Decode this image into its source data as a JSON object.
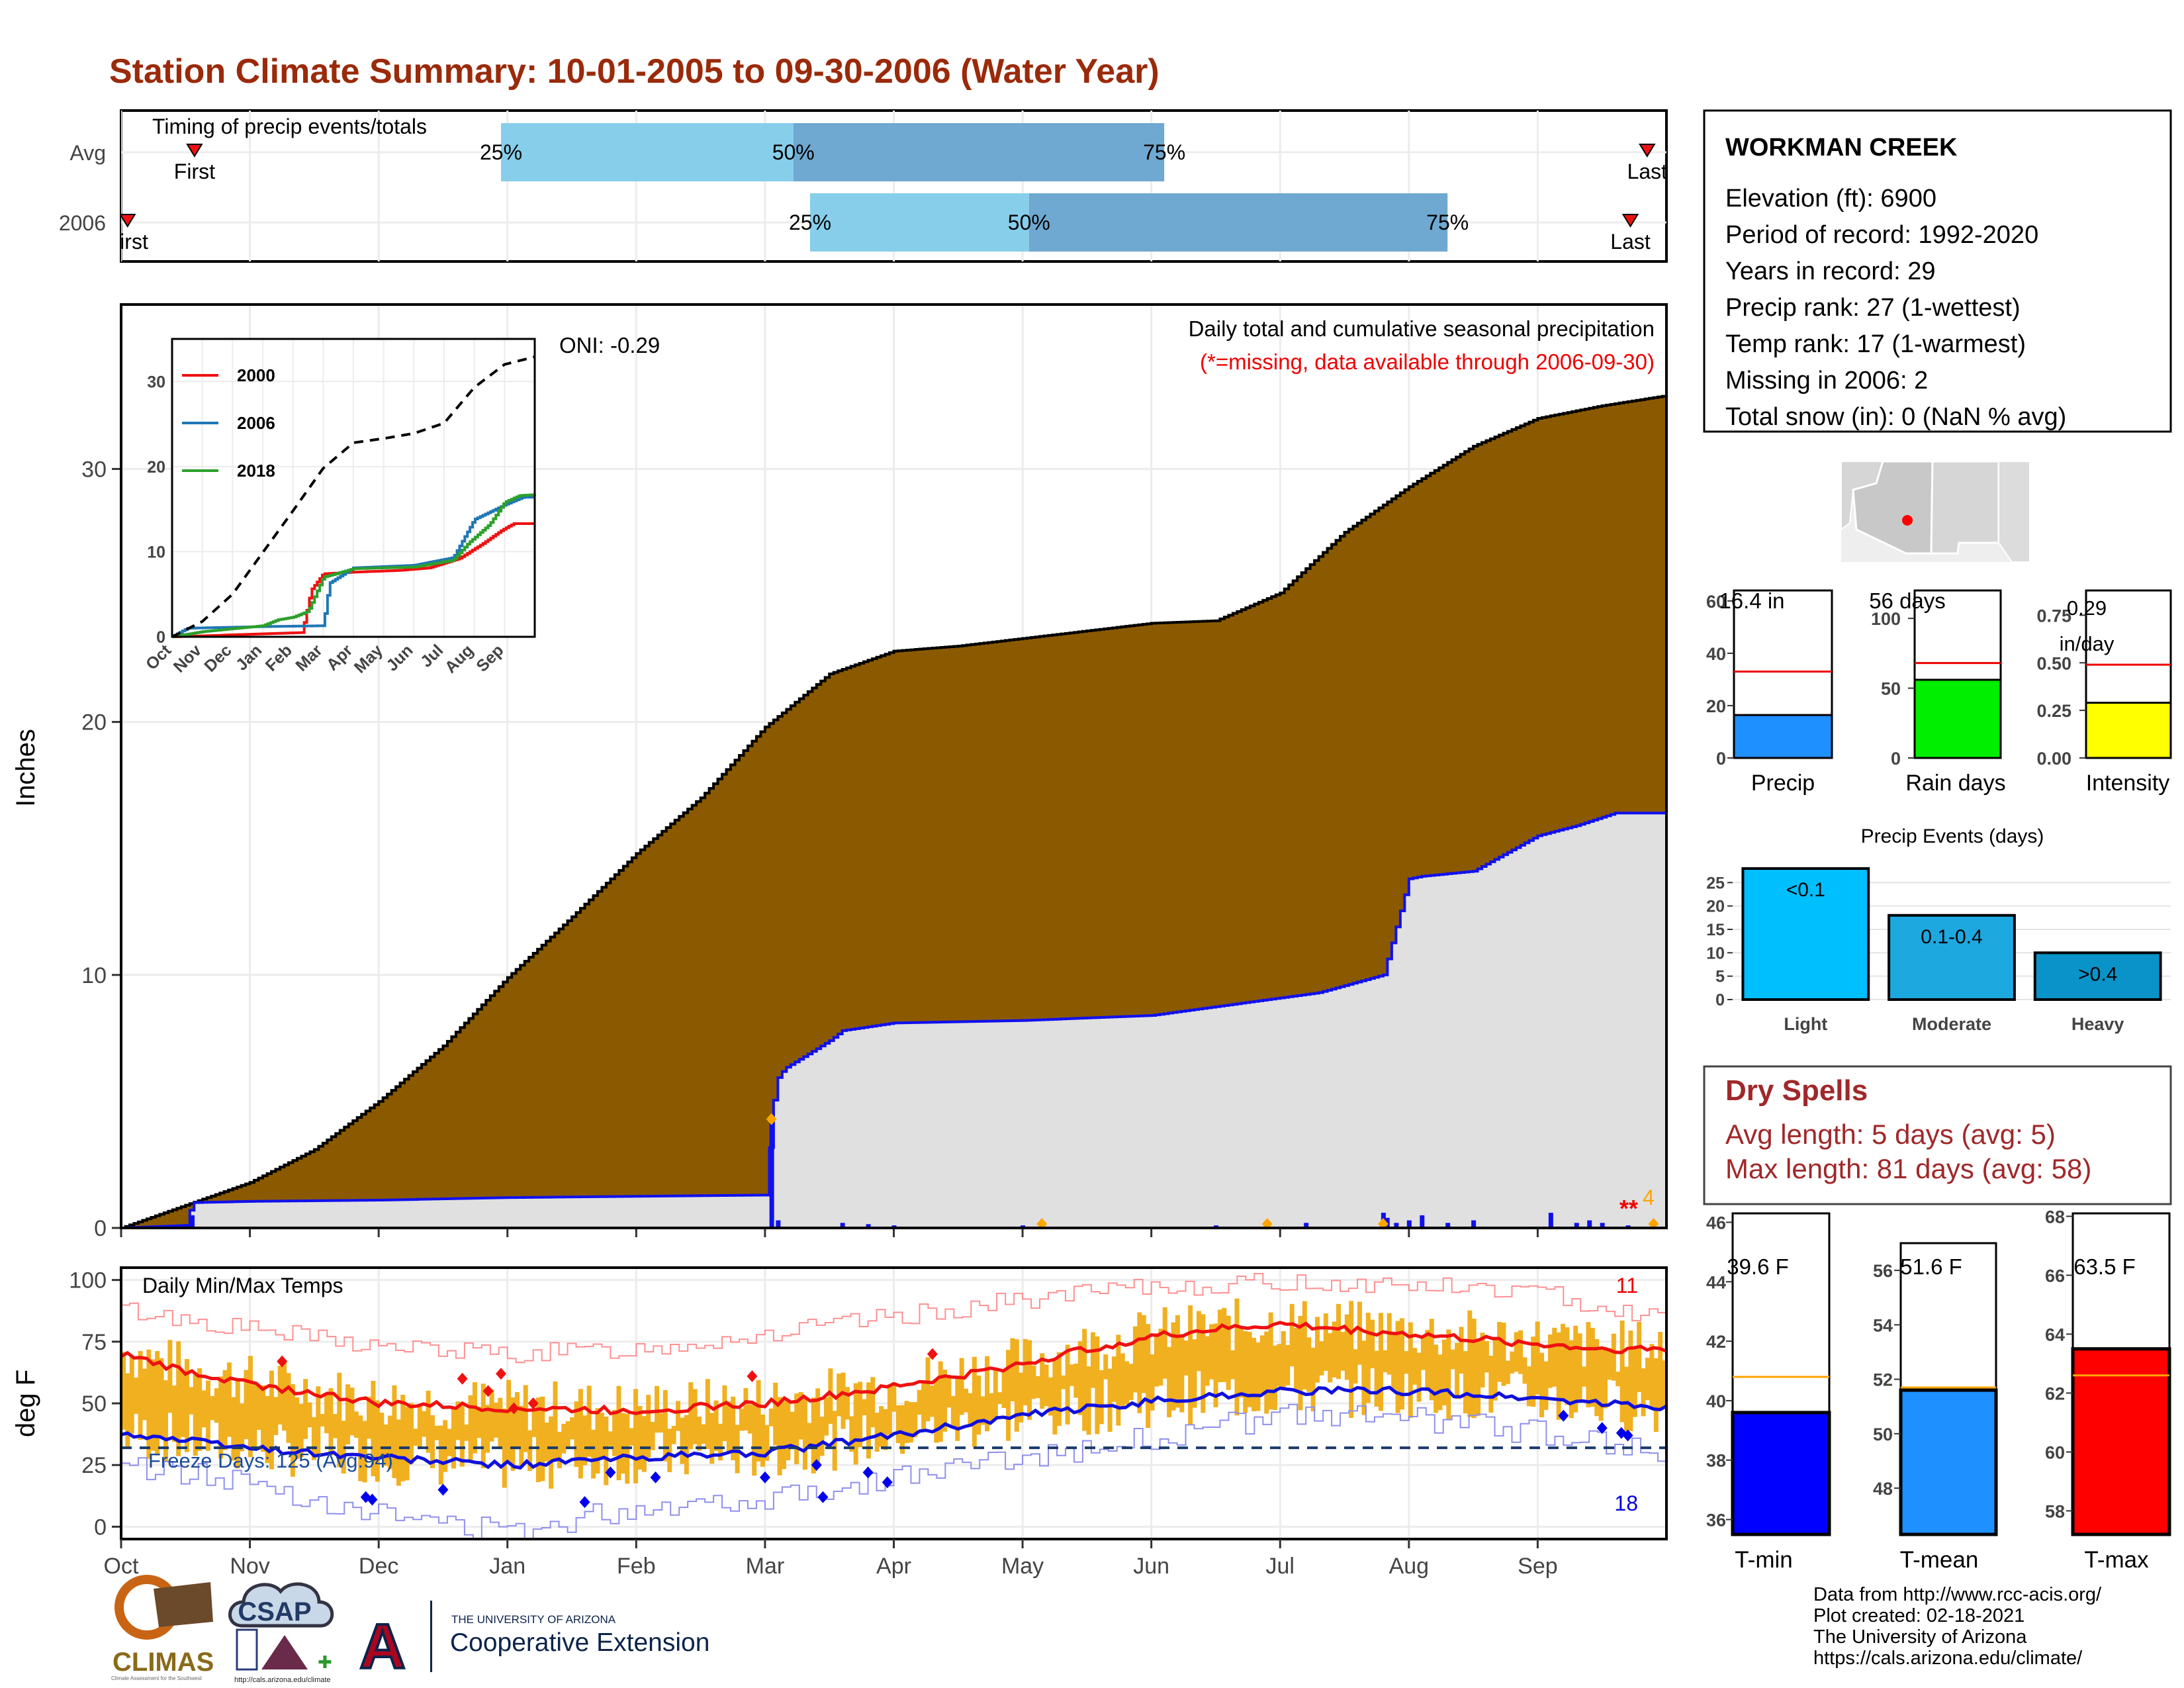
{
  "page": {
    "title": "Station Climate Summary: 10-01-2005 to 09-30-2006 (Water Year)",
    "credits": [
      "Data from http://www.rcc-acis.org/",
      "Plot created: 02-18-2021",
      "The University of Arizona",
      "https://cals.arizona.edu/climate/"
    ],
    "logos": {
      "climas": "CLIMAS",
      "climas_sub": "Climate Assessment for the Southwest",
      "csap": "CSAP",
      "csap_url": "http://cals.arizona.edu/climate",
      "ua_line1": "THE UNIVERSITY OF ARIZONA",
      "ua_line2": "Cooperative Extension"
    },
    "colors": {
      "title": "#9a2a0a",
      "cumulative_avg": "#8b5a00",
      "cumulative_year": "#e0e0e0",
      "year_line": "#1010ee",
      "light_quartile": "#87ceeb",
      "dark_quartile": "#6fa8d0",
      "tmax_line": "#ee1111",
      "tmin_line": "#1010dd",
      "range_bar": "#f0b020",
      "dryspell_text": "#a0282a"
    }
  },
  "chart_data": [
    {
      "id": "timing",
      "type": "bar",
      "title": "Timing of precip events/totals",
      "x_range_months": [
        0,
        12
      ],
      "x_ticks": [
        "Oct",
        "Nov",
        "Dec",
        "Jan",
        "Feb",
        "Mar",
        "Apr",
        "May",
        "Jun",
        "Jul",
        "Aug",
        "Sep"
      ],
      "rows": [
        {
          "label": "Avg",
          "first": 0.57,
          "last": 11.85,
          "p25": 2.95,
          "p50": 5.22,
          "p75": 8.1,
          "first_label": "First",
          "last_label": "Last"
        },
        {
          "label": "2006",
          "first": 0.05,
          "last": 11.72,
          "p25": 5.35,
          "p50": 7.05,
          "p75": 10.3,
          "first_label": "First",
          "last_label": "Last"
        }
      ],
      "quartile_labels": [
        "25%",
        "50%",
        "75%"
      ]
    },
    {
      "id": "precip_main",
      "type": "area",
      "title": "Daily total and cumulative seasonal precipitation",
      "subtitle": "(*=missing, data available through 2006-09-30)",
      "annotation": "ONI: -0.29",
      "ylabel": "Inches",
      "ylim": [
        0,
        36.5
      ],
      "y_ticks": [
        0,
        10,
        20,
        30
      ],
      "x_ticks": [
        "Oct",
        "Nov",
        "Dec",
        "Jan",
        "Feb",
        "Mar",
        "Apr",
        "May",
        "Jun",
        "Jul",
        "Aug",
        "Sep"
      ],
      "missing_marker": "**",
      "missing_count_label": "4",
      "cumulative_avg": {
        "month": [
          0,
          0.5,
          1,
          1.5,
          2,
          2.5,
          3,
          3.5,
          4,
          4.5,
          5,
          5.5,
          6,
          6.5,
          7,
          7.5,
          8,
          8.5,
          9,
          9.5,
          10,
          10.5,
          11,
          11.5,
          12
        ],
        "inches": [
          0,
          0.9,
          1.8,
          3.1,
          5.0,
          7.2,
          9.9,
          12.3,
          14.8,
          17.0,
          19.8,
          21.9,
          22.8,
          23.0,
          23.3,
          23.6,
          23.9,
          24.0,
          25.1,
          27.5,
          29.3,
          30.9,
          32.0,
          32.5,
          32.9
        ]
      },
      "cumulative_2006": {
        "month": [
          0,
          0.5,
          0.55,
          1,
          2,
          3,
          4,
          5.0,
          5.08,
          5.15,
          5.5,
          5.6,
          6.0,
          7,
          8.0,
          9.3,
          9.8,
          10.0,
          10.1,
          10.5,
          11.0,
          11.3,
          11.6,
          12
        ],
        "inches": [
          0,
          0.1,
          1.0,
          1.05,
          1.1,
          1.2,
          1.25,
          1.3,
          5.8,
          6.3,
          7.4,
          7.8,
          8.1,
          8.2,
          8.4,
          9.3,
          10.0,
          13.8,
          13.9,
          14.1,
          15.5,
          15.9,
          16.4,
          16.4
        ]
      },
      "daily_2006": {
        "month": [
          0.55,
          5.05,
          5.1,
          5.6,
          5.8,
          6.0,
          7.0,
          8.5,
          9.2,
          9.8,
          9.83,
          9.9,
          10.0,
          10.1,
          10.3,
          10.5,
          11.1,
          11.3,
          11.4,
          11.5,
          11.7
        ],
        "inches": [
          0.5,
          4.3,
          0.3,
          0.2,
          0.15,
          0.1,
          0.1,
          0.1,
          0.2,
          0.6,
          0.4,
          0.2,
          0.3,
          0.5,
          0.2,
          0.3,
          0.6,
          0.2,
          0.3,
          0.2,
          0.1
        ]
      },
      "record_days_month": [
        5.05,
        7.15,
        8.9,
        9.8,
        11.9
      ],
      "inset": {
        "type": "line",
        "ylim": [
          0,
          35
        ],
        "y_ticks": [
          0,
          10,
          20,
          30
        ],
        "x_ticks": [
          "Oct",
          "Nov",
          "Dec",
          "Jan",
          "Feb",
          "Mar",
          "Apr",
          "May",
          "Jun",
          "Jul",
          "Aug",
          "Sep"
        ],
        "series": [
          {
            "name": "2000",
            "color": "#ee1111",
            "month": [
              0,
              4.3,
              4.6,
              5.0,
              6,
              7.5,
              8.5,
              9.5,
              10.3,
              10.9,
              11.3,
              12
            ],
            "values": [
              0,
              0.5,
              5.5,
              7.4,
              7.6,
              7.8,
              8.1,
              9.2,
              11.0,
              12.5,
              13.3,
              13.3
            ]
          },
          {
            "name": "2006",
            "color": "#1f77b4",
            "month": [
              0,
              0.5,
              1,
              3,
              5.0,
              5.2,
              6,
              8.0,
              9.3,
              10.0,
              11.0,
              11.6,
              12
            ],
            "values": [
              0,
              1.0,
              1.05,
              1.2,
              1.3,
              6.3,
              8.1,
              8.4,
              9.3,
              13.8,
              15.5,
              16.4,
              16.4
            ]
          },
          {
            "name": "2018",
            "color": "#2ca02c",
            "month": [
              0,
              1,
              3,
              3.5,
              4,
              4.5,
              5,
              6,
              8.0,
              9.3,
              9.8,
              10.5,
              11,
              11.5,
              12
            ],
            "values": [
              0,
              0.6,
              1.3,
              2.0,
              2.3,
              3.0,
              7.0,
              8.0,
              8.2,
              9.0,
              11.0,
              13.2,
              15.8,
              16.6,
              16.7
            ]
          },
          {
            "name": "Avg",
            "dashed": true,
            "color": "#000000",
            "month": [
              0,
              1,
              2,
              3,
              4,
              5,
              6,
              7,
              8,
              9,
              10,
              11,
              12
            ],
            "values": [
              0,
              1.8,
              5.0,
              9.9,
              14.8,
              19.8,
              22.8,
              23.3,
              23.9,
              25.1,
              29.3,
              32.0,
              32.9
            ]
          }
        ]
      }
    },
    {
      "id": "temps",
      "type": "line",
      "title": "Daily Min/Max Temps",
      "ylabel": "deg F",
      "ylim": [
        -5,
        105
      ],
      "y_ticks": [
        0,
        25,
        50,
        75,
        100
      ],
      "x_ticks": [
        "Oct",
        "Nov",
        "Dec",
        "Jan",
        "Feb",
        "Mar",
        "Apr",
        "May",
        "Jun",
        "Jul",
        "Aug",
        "Sep"
      ],
      "freeze_line_f": 32,
      "freeze_label": "Freeze Days: 125 (Avg:94)",
      "record_high_count": "11",
      "record_low_count": "18",
      "avg_tmax": {
        "month": [
          0,
          0.5,
          1,
          2,
          3,
          4,
          5,
          5.5,
          6,
          6.5,
          7,
          7.5,
          8,
          8.5,
          9,
          9.5,
          10,
          10.5,
          11,
          11.5,
          12
        ],
        "values": [
          70,
          63,
          58,
          50,
          48,
          47,
          50,
          53,
          57,
          61,
          66,
          72,
          77,
          80,
          82,
          80,
          78,
          76,
          74,
          72,
          72
        ]
      },
      "avg_tmin": {
        "month": [
          0,
          1,
          2,
          3,
          4,
          5,
          6,
          7,
          8,
          9,
          10,
          11,
          12
        ],
        "values": [
          38,
          32,
          28,
          25,
          28,
          30,
          37,
          45,
          51,
          55,
          55,
          52,
          48
        ]
      },
      "record_high_upper": {
        "month": [
          0,
          1,
          2,
          3,
          4,
          5,
          6,
          7,
          8,
          9,
          10,
          11,
          12
        ],
        "values": [
          88,
          80,
          73,
          70,
          72,
          78,
          85,
          92,
          97,
          99,
          98,
          95,
          84
        ]
      },
      "record_low_lower": {
        "month": [
          0,
          1,
          2,
          3,
          4,
          5,
          6,
          7,
          8,
          9,
          10,
          11,
          12
        ],
        "values": [
          25,
          18,
          5,
          -2,
          8,
          12,
          20,
          28,
          36,
          45,
          44,
          38,
          30
        ]
      },
      "record_highs": {
        "month": [
          1.25,
          2.65,
          2.85,
          2.95,
          3.05,
          3.2,
          4.9,
          6.3
        ],
        "values": [
          67,
          60,
          55,
          62,
          48,
          50,
          61,
          70
        ]
      },
      "record_lows": {
        "month": [
          1.9,
          1.95,
          2.5,
          3.6,
          3.8,
          4.15,
          5.0,
          5.4,
          5.45,
          5.8,
          5.95,
          11.2,
          11.5,
          11.65,
          11.7
        ],
        "values": [
          12,
          11,
          15,
          10,
          22,
          20,
          20,
          25,
          12,
          22,
          18,
          45,
          40,
          38,
          37
        ]
      }
    },
    {
      "id": "totals_bars",
      "type": "bar",
      "panels": [
        {
          "category": "Precip",
          "label": "16.4 in",
          "value": 16.4,
          "avg": 33,
          "ylim": [
            0,
            64
          ],
          "y_ticks": [
            0,
            20,
            40,
            60
          ],
          "color": "#1e90ff"
        },
        {
          "category": "Rain days",
          "label": "56 days",
          "value": 56,
          "avg": 68,
          "ylim": [
            0,
            120
          ],
          "y_ticks": [
            0,
            50,
            100
          ],
          "color": "#00ee00"
        },
        {
          "category": "Intensity",
          "label_lines": [
            "0.29",
            "in/day"
          ],
          "value": 0.29,
          "avg": 0.49,
          "ylim": [
            0,
            0.88
          ],
          "y_ticks": [
            0.0,
            0.25,
            0.5,
            0.75
          ],
          "y_tick_labels": [
            "0.00",
            "0.25",
            "0.50",
            "0.75"
          ],
          "color": "#ffff00"
        }
      ]
    },
    {
      "id": "precip_events",
      "type": "bar",
      "title": "Precip Events (days)",
      "categories": [
        "Light",
        "Moderate",
        "Heavy"
      ],
      "bar_labels": [
        "<0.1",
        "0.1-0.4",
        ">0.4"
      ],
      "values": [
        28,
        18,
        10
      ],
      "ylim": [
        0,
        29
      ],
      "y_ticks": [
        0,
        5,
        10,
        15,
        20,
        25
      ],
      "colors": [
        "#00bfff",
        "#1ea8e0",
        "#0a93c8"
      ]
    },
    {
      "id": "temp_bars",
      "type": "bar",
      "panels": [
        {
          "category": "T-min",
          "label": "39.6 F",
          "value": 39.6,
          "avg": 40.8,
          "ylim": [
            35.5,
            46.3
          ],
          "y_ticks": [
            36,
            38,
            40,
            42,
            44,
            46
          ],
          "color": "#0000ff"
        },
        {
          "category": "T-mean",
          "label": "51.6 F",
          "value": 51.6,
          "avg": 51.7,
          "ylim": [
            46.3,
            57
          ],
          "y_ticks": [
            48,
            50,
            52,
            54,
            56
          ],
          "color": "#1e90ff"
        },
        {
          "category": "T-max",
          "label": "63.5 F",
          "value": 63.5,
          "avg": 62.6,
          "ylim": [
            57.2,
            68.1
          ],
          "y_ticks": [
            58,
            60,
            62,
            64,
            66,
            68
          ],
          "color": "#ff0000"
        }
      ]
    }
  ],
  "station": {
    "name": "WORKMAN CREEK",
    "lines": [
      "Elevation (ft): 6900",
      "Period of record: 1992-2020",
      "Years in record: 29",
      "Precip rank: 27 (1-wettest)",
      "Temp rank: 17 (1-warmest)",
      "Missing in 2006: 2",
      "Total snow (in): 0 (NaN % avg)"
    ]
  },
  "dry_spells": {
    "title": "Dry Spells",
    "lines": [
      "Avg length: 5 days (avg: 5)",
      "Max length: 81 days (avg: 58)"
    ]
  }
}
